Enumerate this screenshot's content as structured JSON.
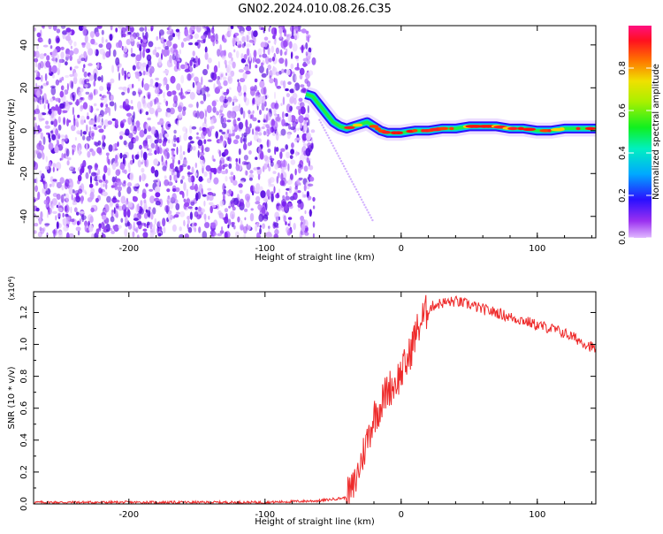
{
  "title": "GN02.2024.010.08.26.C35",
  "chart_data": [
    {
      "type": "heatmap",
      "xlabel": "Height of straight line (km)",
      "ylabel": "Frequency (Hz)",
      "xlim": [
        -270,
        143
      ],
      "ylim": [
        -50,
        49
      ],
      "xticks": [
        -200,
        -100,
        0,
        100
      ],
      "yticks": [
        -40,
        -20,
        0,
        20,
        40
      ],
      "colorbar": {
        "label": "Normalized spectral amplitude",
        "range": [
          0,
          1
        ],
        "ticks": [
          "0.0",
          "0.2",
          "0.4",
          "0.6",
          "0.8"
        ]
      },
      "signal_trace": {
        "x": [
          -70,
          -65,
          -60,
          -55,
          -50,
          -45,
          -40,
          -35,
          -30,
          -25,
          -20,
          -15,
          -10,
          -5,
          0,
          10,
          20,
          30,
          40,
          50,
          60,
          70,
          80,
          90,
          100,
          110,
          120,
          130,
          143
        ],
        "y": [
          17,
          16,
          12,
          8,
          4,
          2,
          1,
          2,
          3,
          4,
          2,
          0,
          -1,
          -1,
          -1,
          0,
          0,
          1,
          1,
          2,
          2,
          2,
          1,
          1,
          0,
          0,
          1,
          1,
          1
        ]
      },
      "noise_xrange": [
        -270,
        -64
      ]
    },
    {
      "type": "line",
      "xlabel": "Height of straight line (km)",
      "ylabel": "SNR (10 * v/v)",
      "y_multiplier": "(x10⁴)",
      "xlim": [
        -270,
        143
      ],
      "ylim": [
        0,
        1.33
      ],
      "xticks": [
        -200,
        -100,
        0,
        100
      ],
      "yticks": [
        "0.0",
        "0.2",
        "0.4",
        "0.6",
        "0.8",
        "1.0",
        "1.2"
      ],
      "series": [
        {
          "color": "#ee2a2a",
          "x": [
            -270,
            -200,
            -150,
            -100,
            -60,
            -40,
            -35,
            -30,
            -25,
            -20,
            -15,
            -10,
            -5,
            0,
            5,
            10,
            15,
            20,
            25,
            30,
            40,
            50,
            60,
            70,
            80,
            90,
            100,
            110,
            120,
            130,
            143
          ],
          "y": [
            0.01,
            0.01,
            0.01,
            0.01,
            0.02,
            0.04,
            0.1,
            0.25,
            0.4,
            0.55,
            0.62,
            0.72,
            0.75,
            0.82,
            0.9,
            1.05,
            1.15,
            1.22,
            1.25,
            1.26,
            1.27,
            1.25,
            1.22,
            1.2,
            1.17,
            1.15,
            1.12,
            1.1,
            1.07,
            1.03,
            0.97
          ]
        }
      ]
    }
  ]
}
